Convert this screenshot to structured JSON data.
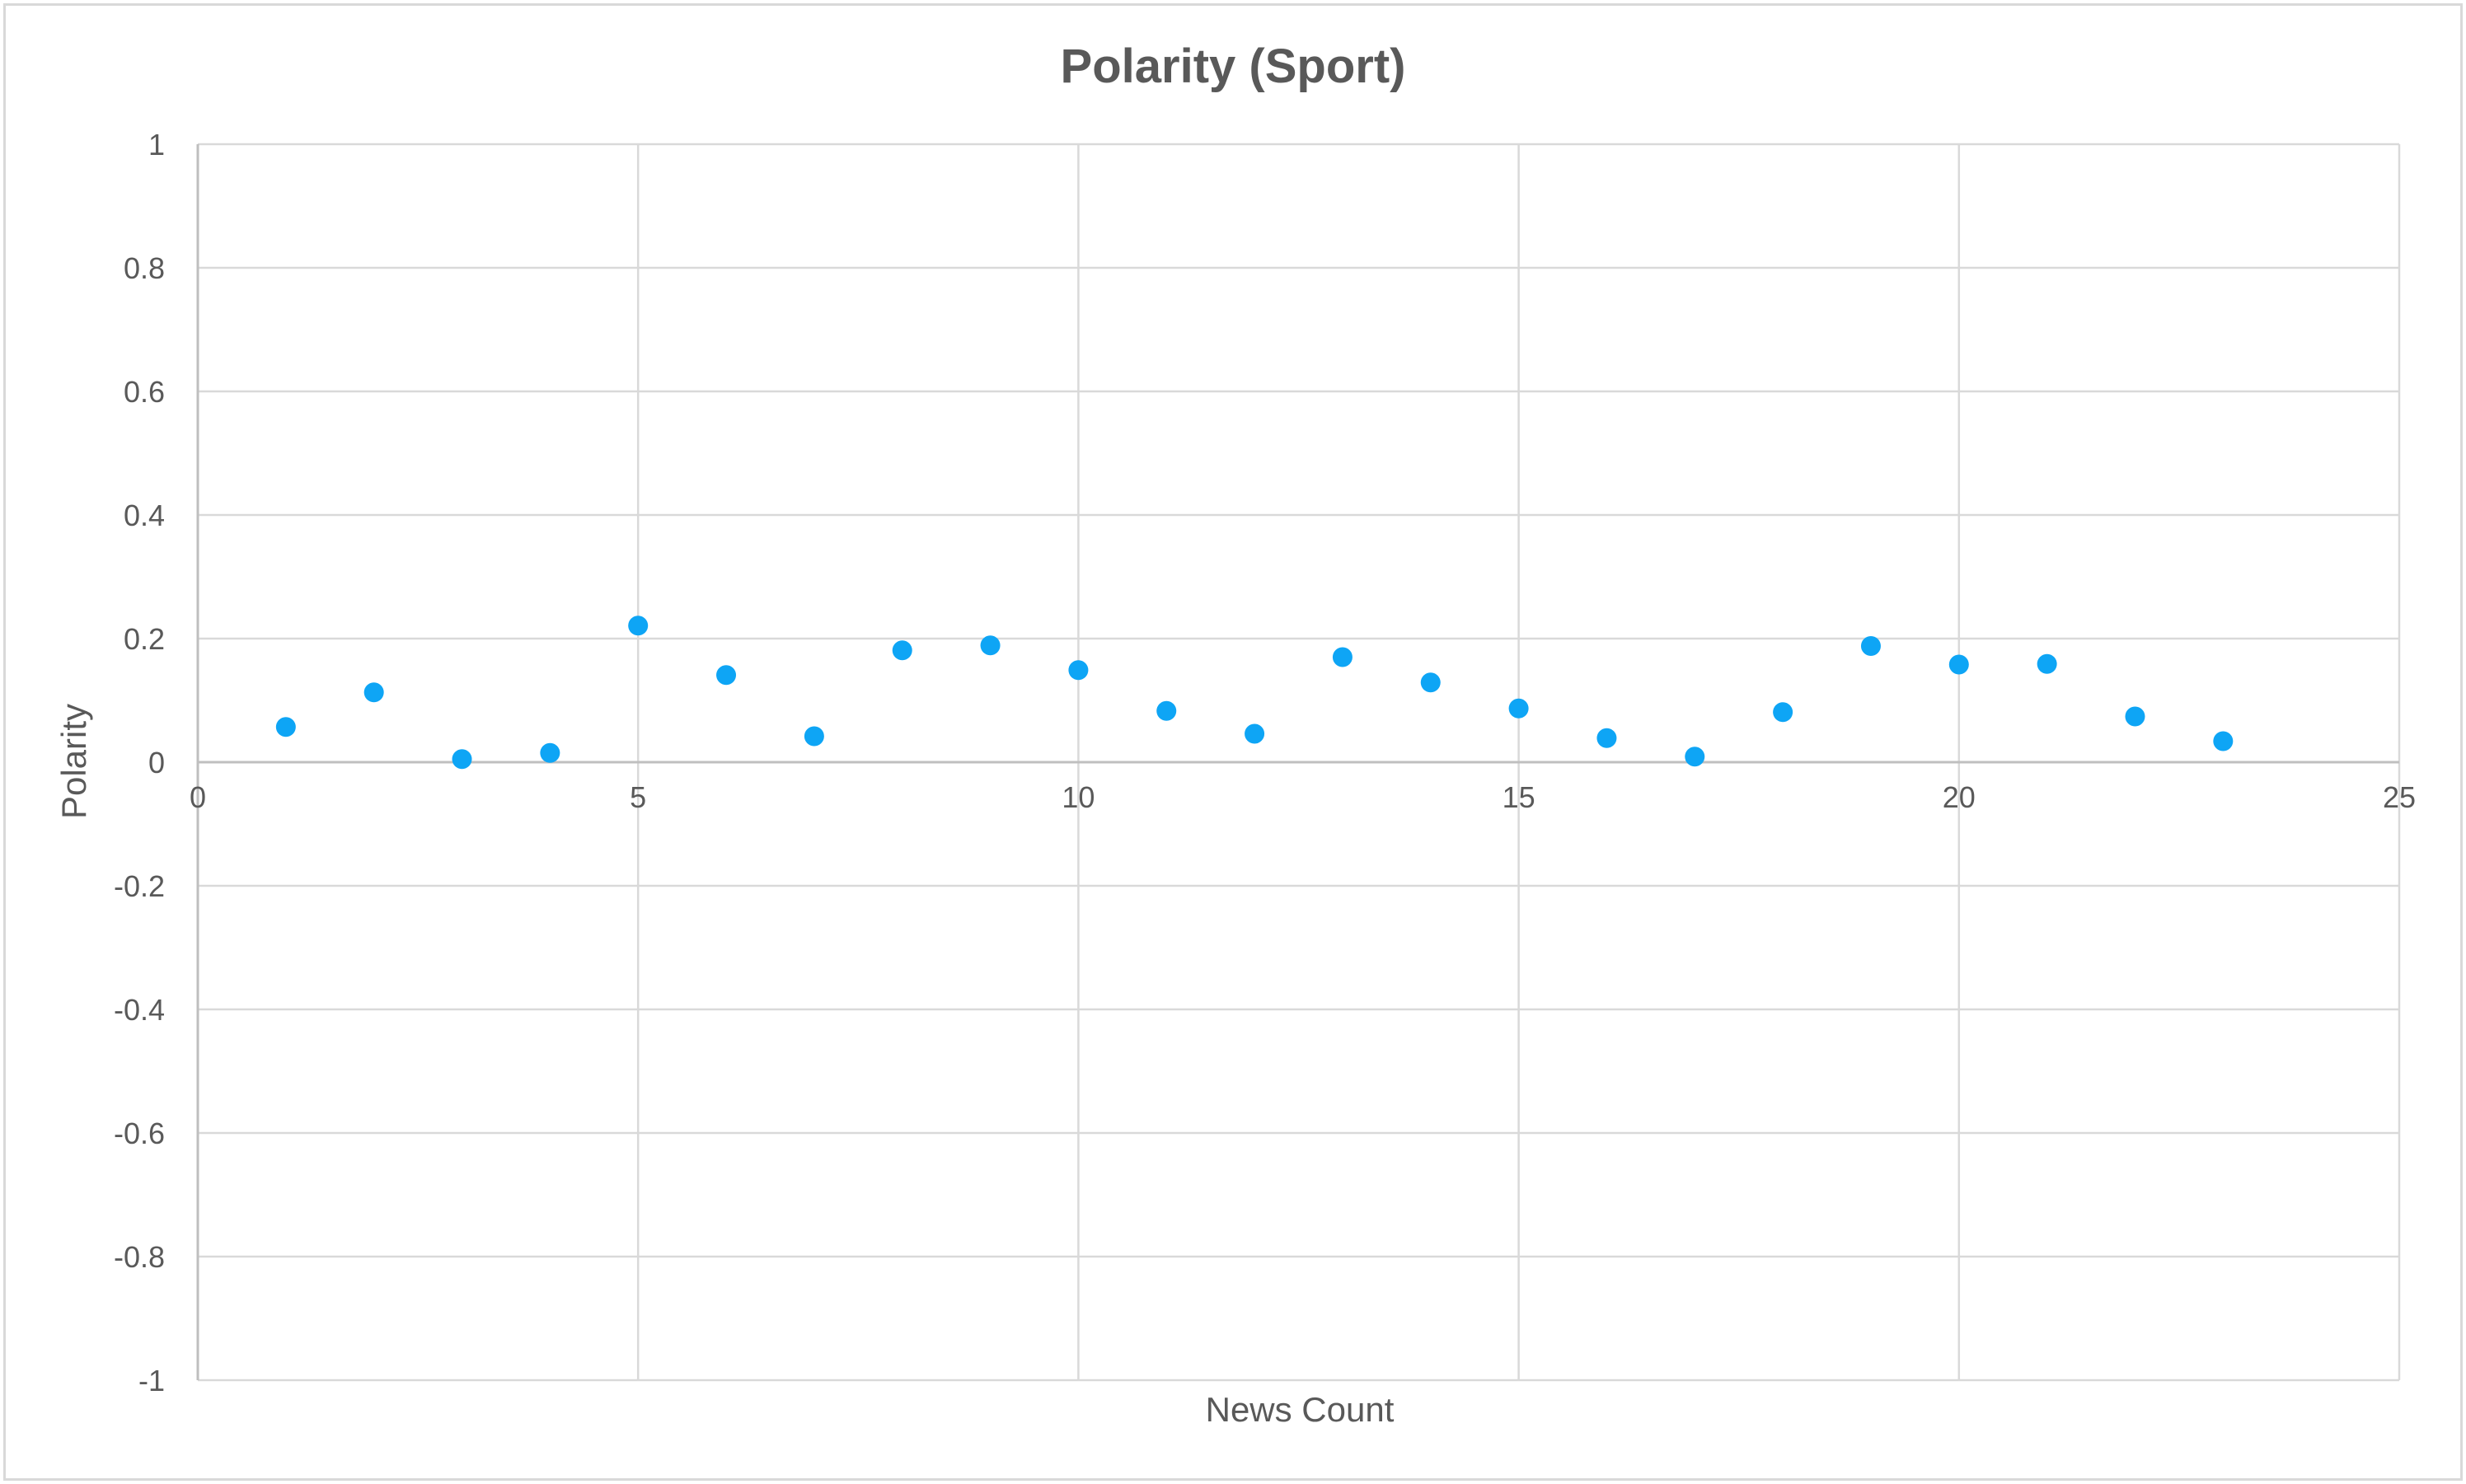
{
  "chart_data": {
    "type": "scatter",
    "title": "Polarity (Sport)",
    "xlabel": "News Count",
    "ylabel": "Polarity",
    "xlim": [
      0,
      25
    ],
    "ylim": [
      -1,
      1
    ],
    "x_ticks": [
      "0",
      "5",
      "10",
      "15",
      "20",
      "25"
    ],
    "y_ticks": [
      "1",
      "0.8",
      "0.6",
      "0.4",
      "0.2",
      "0",
      "-0.2",
      "-0.4",
      "-0.6",
      "-0.8",
      "-1"
    ],
    "grid": true,
    "legend": "none",
    "marker_color": "#0ea5f5",
    "gridline_color": "#d9d9d9",
    "series": [
      {
        "x": [
          1,
          2,
          3,
          4,
          5,
          6,
          7,
          8,
          9,
          10,
          11,
          12,
          13,
          14,
          15,
          16,
          17,
          18,
          19,
          20,
          21,
          22,
          23
        ],
        "y": [
          0.057,
          0.113,
          0.005,
          0.015,
          0.221,
          0.141,
          0.042,
          0.181,
          0.189,
          0.149,
          0.083,
          0.046,
          0.17,
          0.129,
          0.087,
          0.039,
          0.009,
          0.081,
          0.188,
          0.158,
          0.159,
          0.074,
          0.034
        ]
      }
    ]
  }
}
